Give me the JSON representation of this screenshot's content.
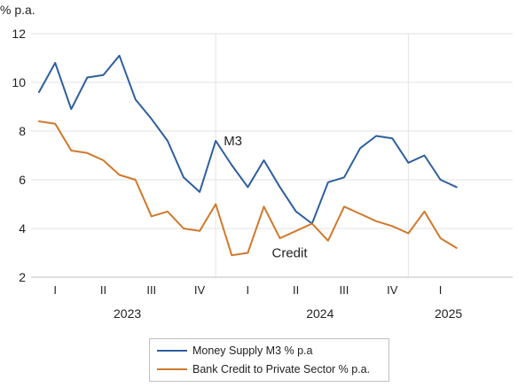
{
  "chart_data": {
    "type": "line",
    "unit_label": "% p.a.",
    "ylim": [
      2,
      12
    ],
    "y_ticks": [
      2,
      4,
      6,
      8,
      10,
      12
    ],
    "x": [
      "2022-10",
      "2022-11",
      "2022-12",
      "2023-01",
      "2023-02",
      "2023-03",
      "2023-04",
      "2023-05",
      "2023-06",
      "2023-07",
      "2023-08",
      "2023-09",
      "2023-10",
      "2023-11",
      "2023-12",
      "2024-01",
      "2024-02",
      "2024-03",
      "2024-04",
      "2024-05",
      "2024-06",
      "2024-07",
      "2024-08",
      "2024-09",
      "2024-10",
      "2024-11",
      "2024-12",
      "2025-01",
      "2025-02",
      "2025-03"
    ],
    "quarter_labels": [
      {
        "label": "I",
        "center": 1
      },
      {
        "label": "II",
        "center": 4
      },
      {
        "label": "III",
        "center": 7
      },
      {
        "label": "IV",
        "center": 10
      },
      {
        "label": "I",
        "center": 13
      },
      {
        "label": "II",
        "center": 16
      },
      {
        "label": "III",
        "center": 19
      },
      {
        "label": "IV",
        "center": 22
      },
      {
        "label": "I",
        "center": 25
      }
    ],
    "year_labels": [
      {
        "label": "2023",
        "center": 5.5
      },
      {
        "label": "2024",
        "center": 17.5
      },
      {
        "label": "2025",
        "center": 25.5
      }
    ],
    "year_boundaries": [
      11.5,
      23.5
    ],
    "series": [
      {
        "name": "Money Supply M3 % p.a",
        "color": "#2e5f9e",
        "values": [
          9.6,
          10.8,
          8.9,
          10.2,
          10.3,
          11.1,
          9.3,
          8.5,
          7.6,
          6.1,
          5.5,
          7.6,
          6.6,
          5.7,
          6.8,
          5.7,
          4.7,
          4.2,
          5.9,
          6.1,
          7.3,
          7.8,
          7.7,
          6.7,
          7.0,
          6.0,
          5.7,
          null,
          null,
          null
        ]
      },
      {
        "name": "Bank Credit to Private Sector % p.a.",
        "color": "#d0792c",
        "values": [
          8.4,
          8.3,
          7.2,
          7.1,
          6.8,
          6.2,
          6.0,
          4.5,
          4.7,
          4.0,
          3.9,
          5.0,
          2.9,
          3.0,
          4.9,
          3.6,
          3.9,
          4.2,
          3.5,
          4.9,
          4.6,
          4.3,
          4.1,
          3.8,
          4.7,
          3.6,
          3.2,
          null,
          null,
          null
        ]
      }
    ],
    "annotations": [
      {
        "text": "M3",
        "x": 11.5,
        "y": 7.6
      },
      {
        "text": "Credit",
        "x": 14.5,
        "y": 3.0
      }
    ],
    "grid": "horizontal",
    "legend": "bottom-center"
  }
}
